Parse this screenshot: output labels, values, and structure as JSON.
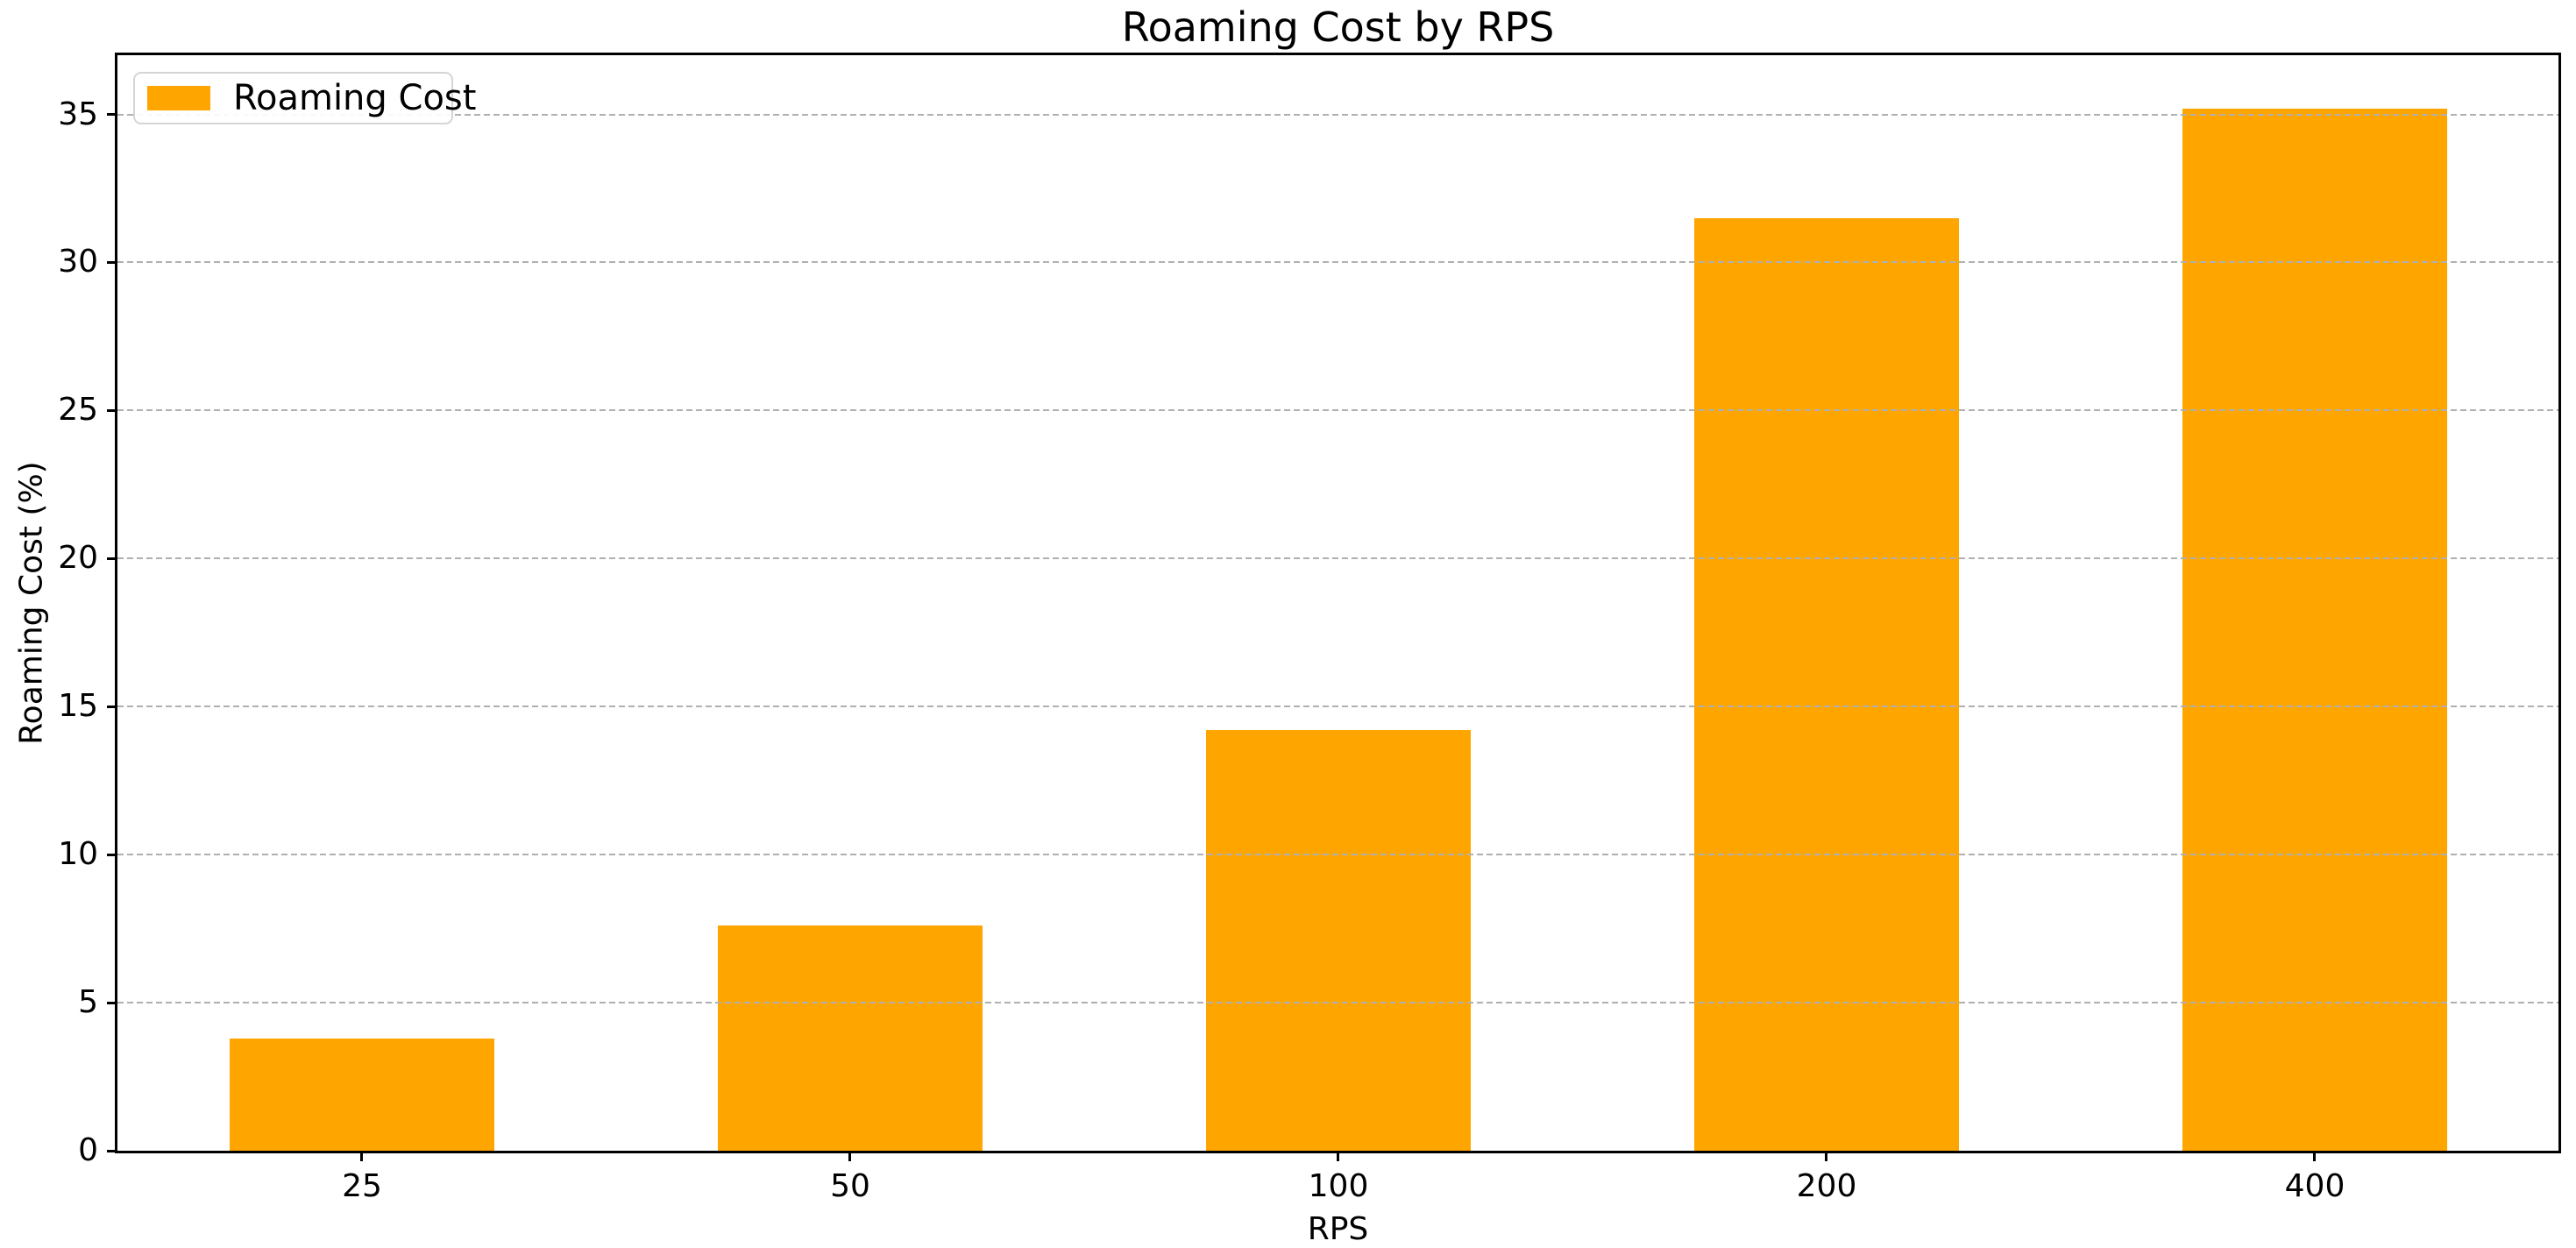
{
  "chart_data": {
    "type": "bar",
    "title": "Roaming Cost by RPS",
    "xlabel": "RPS",
    "ylabel": "Roaming Cost (%)",
    "categories": [
      "25",
      "50",
      "100",
      "200",
      "400"
    ],
    "series": [
      {
        "name": "Roaming Cost",
        "values": [
          3.8,
          7.6,
          14.2,
          31.5,
          35.2
        ]
      }
    ],
    "yticks": [
      0,
      5,
      10,
      15,
      20,
      25,
      30,
      35
    ],
    "ylim": [
      0,
      37
    ],
    "bar_color": "#FFA500",
    "grid": true,
    "grid_style": "dashed",
    "grid_color": "#b0b0b0",
    "grid_above_bars": true,
    "legend": {
      "position": "upper-left",
      "label": "Roaming Cost",
      "swatch_color": "#FFA500"
    }
  }
}
